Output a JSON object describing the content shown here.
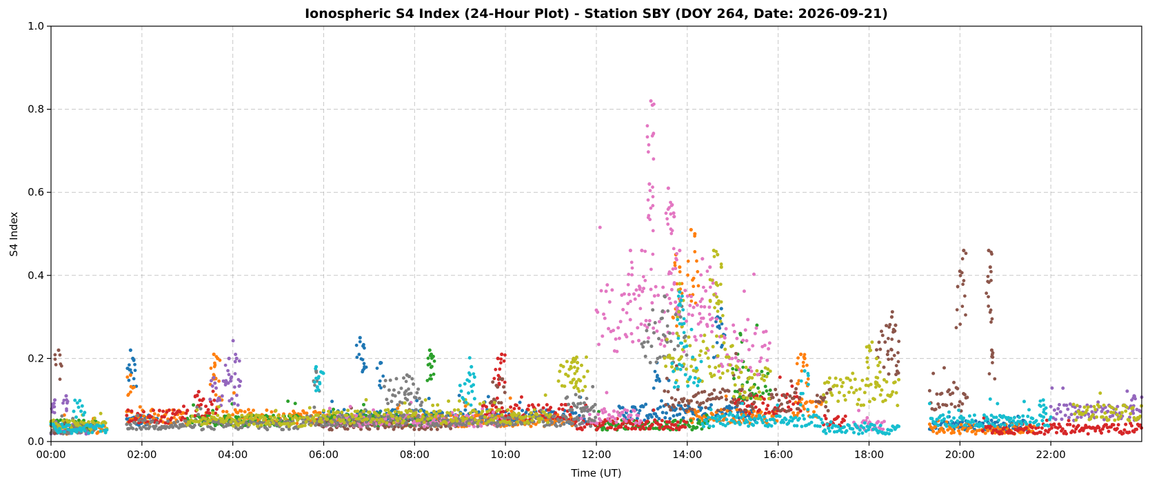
{
  "chart_data": {
    "type": "scatter",
    "title": "Ionospheric S4 Index (24-Hour Plot) - Station SBY (DOY 264, Date: 2026-09-21)",
    "xlabel": "Time (UT)",
    "ylabel": "S4 Index",
    "xlim": [
      "00:00",
      "24:00"
    ],
    "ylim": [
      0.0,
      1.0
    ],
    "x_ticks": [
      "00:00",
      "02:00",
      "04:00",
      "06:00",
      "08:00",
      "10:00",
      "12:00",
      "14:00",
      "16:00",
      "18:00",
      "20:00",
      "22:00"
    ],
    "y_ticks": [
      "0.0",
      "0.2",
      "0.4",
      "0.6",
      "0.8",
      "1.0"
    ],
    "grid": true,
    "series": [
      {
        "color": "#1f77b4",
        "segments": [
          [
            "01:40",
            "02:20",
            0.05
          ],
          [
            "05:55",
            "11:50",
            0.06
          ],
          [
            "12:30",
            "15:30",
            0.07
          ],
          [
            "19:20",
            "21:30",
            0.04
          ]
        ],
        "peaks": [
          [
            "01:45",
            0.22
          ],
          [
            "01:48",
            0.2
          ],
          [
            "06:48",
            0.25
          ],
          [
            "06:52",
            0.23
          ],
          [
            "07:15",
            0.19
          ],
          [
            "13:20",
            0.19
          ],
          [
            "14:45",
            0.32
          ],
          [
            "14:40",
            0.3
          ]
        ]
      },
      {
        "color": "#ff7f0e",
        "segments": [
          [
            "00:00",
            "01:15",
            0.03
          ],
          [
            "01:40",
            "03:00",
            0.06
          ],
          [
            "03:20",
            "06:00",
            0.06
          ],
          [
            "06:00",
            "11:30",
            0.05
          ],
          [
            "14:00",
            "16:00",
            0.06
          ],
          [
            "16:20",
            "17:00",
            0.08
          ],
          [
            "19:20",
            "21:40",
            0.03
          ]
        ],
        "peaks": [
          [
            "03:35",
            0.21
          ],
          [
            "03:40",
            0.2
          ],
          [
            "13:45",
            0.45
          ],
          [
            "14:05",
            0.51
          ],
          [
            "14:10",
            0.5
          ],
          [
            "13:50",
            0.42
          ],
          [
            "16:30",
            0.21
          ],
          [
            "16:35",
            0.2
          ],
          [
            "01:45",
            0.16
          ]
        ]
      },
      {
        "color": "#2ca02c",
        "segments": [
          [
            "00:00",
            "01:00",
            0.04
          ],
          [
            "03:00",
            "05:30",
            0.05
          ],
          [
            "06:00",
            "08:30",
            0.05
          ],
          [
            "12:00",
            "14:30",
            0.04
          ],
          [
            "15:00",
            "15:50",
            0.14
          ]
        ],
        "peaks": [
          [
            "08:20",
            0.22
          ],
          [
            "08:22",
            0.21
          ],
          [
            "15:10",
            0.26
          ]
        ]
      },
      {
        "color": "#d62728",
        "segments": [
          [
            "01:40",
            "03:00",
            0.06
          ],
          [
            "03:10",
            "03:40",
            0.08
          ],
          [
            "09:30",
            "11:30",
            0.07
          ],
          [
            "11:30",
            "14:00",
            0.04
          ],
          [
            "15:00",
            "16:30",
            0.09
          ],
          [
            "17:00",
            "17:30",
            0.05
          ],
          [
            "20:30",
            "24:00",
            0.03
          ]
        ],
        "peaks": [
          [
            "09:50",
            0.2
          ],
          [
            "09:55",
            0.21
          ],
          [
            "03:15",
            0.12
          ]
        ]
      },
      {
        "color": "#9467bd",
        "segments": [
          [
            "00:00",
            "01:00",
            0.03
          ],
          [
            "03:30",
            "04:10",
            0.12
          ],
          [
            "22:00",
            "24:00",
            0.07
          ]
        ],
        "peaks": [
          [
            "00:05",
            0.1
          ],
          [
            "00:20",
            0.11
          ],
          [
            "03:55",
            0.2
          ],
          [
            "04:05",
            0.2
          ],
          [
            "23:50",
            0.11
          ]
        ]
      },
      {
        "color": "#8c564b",
        "segments": [
          [
            "00:00",
            "00:30",
            0.03
          ],
          [
            "05:50",
            "09:00",
            0.04
          ],
          [
            "09:40",
            "10:00",
            0.12
          ],
          [
            "13:30",
            "15:30",
            0.1
          ],
          [
            "15:50",
            "16:30",
            0.1
          ],
          [
            "16:50",
            "17:10",
            0.1
          ],
          [
            "18:10",
            "18:40",
            0.22
          ],
          [
            "19:20",
            "20:10",
            0.1
          ]
        ],
        "peaks": [
          [
            "00:10",
            0.22
          ],
          [
            "18:30",
            0.3
          ],
          [
            "18:35",
            0.28
          ],
          [
            "20:05",
            0.46
          ],
          [
            "20:00",
            0.41
          ],
          [
            "20:38",
            0.46
          ],
          [
            "20:40",
            0.42
          ],
          [
            "20:42",
            0.22
          ]
        ]
      },
      {
        "color": "#e377c2",
        "segments": [
          [
            "06:00",
            "10:00",
            0.05
          ],
          [
            "11:40",
            "13:00",
            0.06
          ],
          [
            "12:00",
            "13:30",
            0.3
          ],
          [
            "13:30",
            "14:40",
            0.3
          ],
          [
            "14:40",
            "15:50",
            0.22
          ],
          [
            "17:40",
            "18:20",
            0.04
          ]
        ],
        "peaks": [
          [
            "13:12",
            0.82
          ],
          [
            "13:14",
            0.81
          ],
          [
            "13:10",
            0.62
          ],
          [
            "13:35",
            0.61
          ],
          [
            "13:40",
            0.57
          ],
          [
            "13:42",
            0.55
          ],
          [
            "12:45",
            0.46
          ],
          [
            "13:00",
            0.46
          ],
          [
            "13:50",
            0.46
          ],
          [
            "14:20",
            0.44
          ],
          [
            "14:30",
            0.42
          ]
        ]
      },
      {
        "color": "#7f7f7f",
        "segments": [
          [
            "00:00",
            "01:00",
            0.03
          ],
          [
            "01:40",
            "05:30",
            0.04
          ],
          [
            "05:30",
            "12:00",
            0.05
          ],
          [
            "07:20",
            "08:10",
            0.12
          ],
          [
            "11:20",
            "12:00",
            0.09
          ],
          [
            "13:00",
            "14:00",
            0.25
          ]
        ],
        "peaks": [
          [
            "05:50",
            0.17
          ],
          [
            "07:50",
            0.16
          ],
          [
            "13:30",
            0.35
          ]
        ]
      },
      {
        "color": "#bcbd22",
        "segments": [
          [
            "00:00",
            "01:15",
            0.04
          ],
          [
            "03:00",
            "06:00",
            0.05
          ],
          [
            "06:00",
            "11:00",
            0.06
          ],
          [
            "11:10",
            "11:50",
            0.16
          ],
          [
            "13:30",
            "15:00",
            0.2
          ],
          [
            "15:00",
            "15:50",
            0.14
          ],
          [
            "17:00",
            "18:40",
            0.12
          ],
          [
            "22:30",
            "24:00",
            0.07
          ]
        ],
        "peaks": [
          [
            "11:30",
            0.2
          ],
          [
            "11:35",
            0.19
          ],
          [
            "14:35",
            0.46
          ],
          [
            "14:40",
            0.45
          ],
          [
            "14:45",
            0.42
          ],
          [
            "18:00",
            0.23
          ],
          [
            "18:10",
            0.2
          ],
          [
            "13:50",
            0.38
          ]
        ]
      },
      {
        "color": "#17becf",
        "segments": [
          [
            "00:30",
            "00:45",
            0.08
          ],
          [
            "00:00",
            "01:15",
            0.03
          ],
          [
            "05:50",
            "06:00",
            0.17
          ],
          [
            "09:00",
            "09:20",
            0.12
          ],
          [
            "13:40",
            "14:20",
            0.18
          ],
          [
            "14:20",
            "17:00",
            0.05
          ],
          [
            "17:00",
            "18:40",
            0.03
          ],
          [
            "19:20",
            "22:00",
            0.05
          ]
        ],
        "peaks": [
          [
            "05:50",
            0.18
          ],
          [
            "09:15",
            0.18
          ],
          [
            "13:50",
            0.36
          ],
          [
            "13:52",
            0.34
          ],
          [
            "16:35",
            0.17
          ],
          [
            "21:50",
            0.1
          ]
        ]
      }
    ]
  }
}
